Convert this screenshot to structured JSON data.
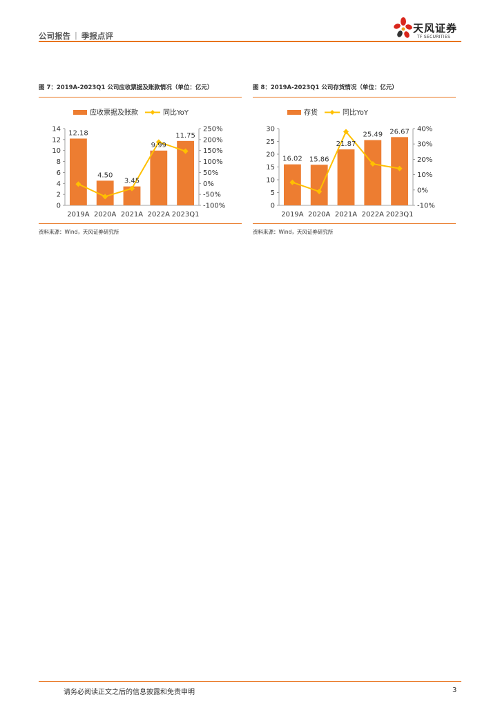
{
  "header": {
    "report_type": "公司报告",
    "separator": "|",
    "subtype": "季报点评"
  },
  "logo": {
    "name": "天风证券",
    "sub": "TF SECURITIES"
  },
  "figures": [
    {
      "title": "图 7：2019A-2023Q1 公司应收票据及账款情况（单位：亿元）",
      "source": "资料来源：Wind，天风证券研究所"
    },
    {
      "title": "图 8：2019A-2023Q1 公司存货情况（单位：亿元）",
      "source": "资料来源：Wind，天风证券研究所"
    }
  ],
  "chart_data": [
    {
      "type": "bar",
      "categories": [
        "2019A",
        "2020A",
        "2021A",
        "2022A",
        "2023Q1"
      ],
      "series": [
        {
          "name": "应收票据及账款",
          "kind": "bar",
          "axis": "left",
          "values": [
            12.18,
            4.5,
            3.45,
            9.99,
            11.75
          ],
          "labels": [
            "12.18",
            "4.50",
            "3.45",
            "9.99",
            "11.75"
          ]
        },
        {
          "name": "同比YoY",
          "kind": "line",
          "axis": "right",
          "values": [
            -3,
            -60,
            -23,
            189,
            147
          ]
        }
      ],
      "left_ticks": [
        "0",
        "2",
        "4",
        "6",
        "8",
        "10",
        "12",
        "14"
      ],
      "right_ticks": [
        "-100%",
        "-50%",
        "0%",
        "50%",
        "100%",
        "150%",
        "200%",
        "250%"
      ],
      "ylim": [
        0,
        14
      ],
      "y2lim": [
        -100,
        250
      ],
      "legend_position": "top",
      "colors": {
        "bar": "#ED7D31",
        "line": "#FFC000"
      }
    },
    {
      "type": "bar",
      "categories": [
        "2019A",
        "2020A",
        "2021A",
        "2022A",
        "2023Q1"
      ],
      "series": [
        {
          "name": "存货",
          "kind": "bar",
          "axis": "left",
          "values": [
            16.02,
            15.86,
            21.87,
            25.49,
            26.67
          ],
          "labels": [
            "16.02",
            "15.86",
            "21.87",
            "25.49",
            "26.67"
          ]
        },
        {
          "name": "同比YoY",
          "kind": "line",
          "axis": "right",
          "values": [
            5,
            -1,
            38,
            17,
            14
          ]
        }
      ],
      "left_ticks": [
        "0",
        "5",
        "10",
        "15",
        "20",
        "25",
        "30"
      ],
      "right_ticks": [
        "-10%",
        "0%",
        "10%",
        "20%",
        "30%",
        "40%"
      ],
      "ylim": [
        0,
        30
      ],
      "y2lim": [
        -10,
        40
      ],
      "legend_position": "top",
      "colors": {
        "bar": "#ED7D31",
        "line": "#FFC000"
      }
    }
  ],
  "footer": {
    "disclaimer": "请务必阅读正文之后的信息披露和免责申明",
    "page": "3"
  }
}
